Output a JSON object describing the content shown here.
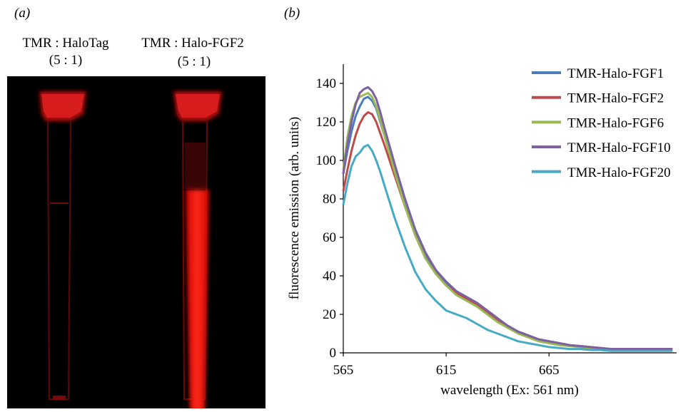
{
  "photo": {
    "label": "(a)",
    "lanes": [
      {
        "name": "TMR : HaloTag",
        "ratio": "(5 : 1)"
      },
      {
        "name": "TMR : Halo-FGF2",
        "ratio": "(5 : 1)"
      }
    ]
  },
  "chart_data": {
    "type": "line",
    "label": "(b)",
    "x_label": "wavelength (Ex: 561 nm)",
    "y_label": "fluorescence emission (arb. units)",
    "x": [
      565,
      567,
      569,
      571,
      573,
      575,
      577,
      579,
      581,
      583,
      585,
      590,
      595,
      600,
      605,
      610,
      615,
      620,
      625,
      630,
      635,
      640,
      645,
      650,
      655,
      660,
      665,
      670,
      675,
      680,
      685,
      690,
      695,
      700,
      705,
      710,
      715,
      720,
      725
    ],
    "series": [
      {
        "name": "TMR-Halo-FGF1",
        "color": "#4a7ebb",
        "values": [
          93,
          105,
          115,
          123,
          128,
          132,
          133,
          131,
          127,
          120,
          113,
          95,
          78,
          63,
          50,
          42,
          36,
          31,
          28,
          25,
          21,
          17,
          14,
          11,
          9,
          7,
          6,
          5,
          4,
          3.5,
          3,
          2.5,
          2,
          2,
          2,
          1.5,
          1.5,
          1.5,
          1.5
        ]
      },
      {
        "name": "TMR-Halo-FGF2",
        "color": "#be4b48",
        "values": [
          84,
          95,
          105,
          113,
          119,
          123,
          125,
          124,
          120,
          114,
          108,
          92,
          76,
          61,
          49,
          41,
          35,
          31,
          28,
          25,
          21,
          17,
          14,
          11,
          9,
          7,
          6,
          5,
          4,
          3.5,
          3,
          2.5,
          2,
          2,
          2,
          2,
          2,
          2,
          2
        ]
      },
      {
        "name": "TMR-Halo-FGF6",
        "color": "#98b954",
        "values": [
          95,
          112,
          123,
          130,
          133,
          134,
          135,
          133,
          128,
          121,
          113,
          94,
          76,
          61,
          49,
          41,
          35,
          30,
          27,
          24,
          20,
          16,
          13,
          10,
          8,
          6,
          5,
          4,
          3.5,
          3,
          2.5,
          2,
          2,
          1.5,
          1.5,
          1.5,
          1.5,
          1.5,
          1.5
        ]
      },
      {
        "name": "TMR-Halo-FGF10",
        "color": "#7d60a0",
        "values": [
          93,
          108,
          120,
          129,
          135,
          137,
          138,
          136,
          132,
          125,
          117,
          98,
          80,
          64,
          52,
          43,
          37,
          32,
          29,
          26,
          22,
          18,
          14,
          11,
          9,
          7,
          6,
          5,
          4,
          3.5,
          3,
          2.5,
          2,
          2,
          2,
          2,
          2,
          2,
          2
        ]
      },
      {
        "name": "TMR-Halo-FGF20",
        "color": "#46aac5",
        "values": [
          77,
          88,
          97,
          102,
          104,
          107,
          108,
          105,
          100,
          94,
          87,
          70,
          55,
          42,
          33,
          27,
          22,
          20,
          18,
          15,
          12,
          10,
          8,
          6,
          5,
          4,
          3,
          2.5,
          2,
          2,
          1.5,
          1.5,
          1,
          1,
          1,
          1,
          1,
          1,
          1
        ]
      }
    ],
    "xlim": [
      565,
      727
    ],
    "xticks": [
      565,
      615,
      665
    ],
    "ylim": [
      0,
      150
    ],
    "yticks": [
      0,
      20,
      40,
      60,
      80,
      100,
      120,
      140
    ],
    "grid": false,
    "legend": "top-right"
  }
}
